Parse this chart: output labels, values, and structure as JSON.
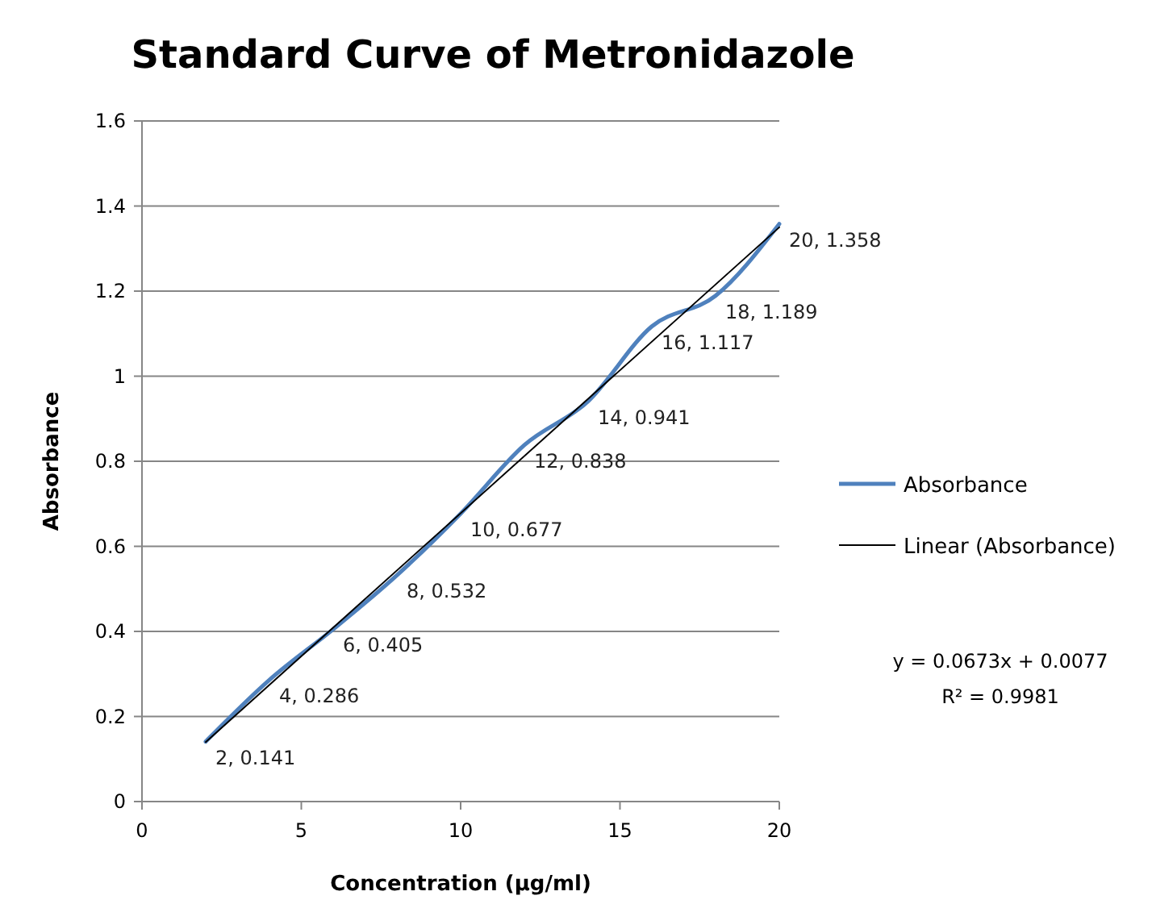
{
  "chart_data": {
    "type": "line",
    "title": "Standard Curve of Metronidazole",
    "xlabel": "Concentration (µg/ml)",
    "ylabel": "Absorbance",
    "x": [
      2,
      4,
      6,
      8,
      10,
      12,
      14,
      16,
      18,
      20
    ],
    "series": [
      {
        "name": "Absorbance",
        "color": "#4f81bd",
        "values": [
          0.141,
          0.286,
          0.405,
          0.532,
          0.677,
          0.838,
          0.941,
          1.117,
          1.189,
          1.358
        ],
        "value_labels": [
          "2, 0.141",
          "4, 0.286",
          "6, 0.405",
          "8, 0.532",
          "10, 0.677",
          "12, 0.838",
          "14, 0.941",
          "16, 1.117",
          "18, 1.189",
          "20, 1.358"
        ]
      },
      {
        "name": "Linear (Absorbance)",
        "type": "line",
        "color": "#000000",
        "x": [
          2,
          20
        ],
        "values": [
          0.14,
          1.35
        ]
      }
    ],
    "xlim": [
      0,
      20
    ],
    "xticks": [
      0,
      5,
      10,
      15,
      20
    ],
    "ylim": [
      0,
      1.6
    ],
    "yticks": [
      0,
      0.2,
      0.4,
      0.6,
      0.8,
      1,
      1.2,
      1.4,
      1.6
    ],
    "grid": "y",
    "legend": "right",
    "marker": "none",
    "line_style": "solid",
    "annotations": [
      "y = 0.0673x + 0.0077",
      "R² = 0.9981"
    ]
  }
}
